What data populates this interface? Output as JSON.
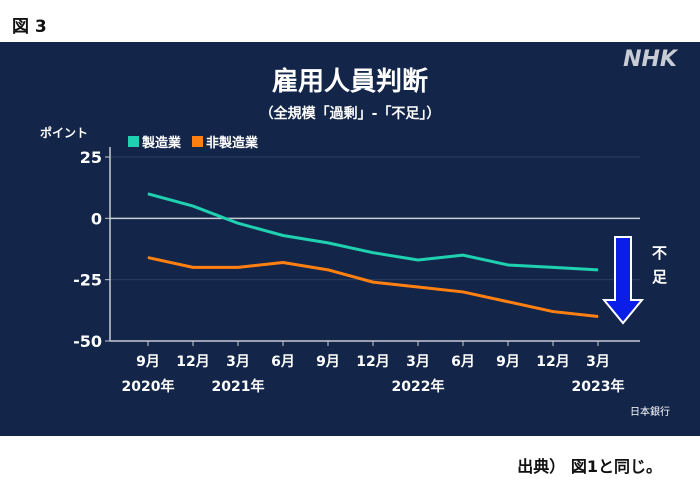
{
  "figure_label": "図 3",
  "logo": "NHK",
  "source_note": "日本銀行",
  "caption": "出典） 図1と同じ。",
  "annotation": "不足",
  "chart_data": {
    "type": "line",
    "title": "雇用人員判断",
    "subtitle": "（全規模「過剰」-「不足」）",
    "ylabel": "ポイント",
    "ylim": [
      -50,
      25
    ],
    "yticks": [
      25,
      0,
      -25,
      -50
    ],
    "categories": [
      "9月",
      "12月",
      "3月",
      "6月",
      "9月",
      "12月",
      "3月",
      "6月",
      "9月",
      "12月",
      "3月"
    ],
    "year_labels": [
      {
        "index": 0,
        "label": "2020年"
      },
      {
        "index": 2,
        "label": "2021年"
      },
      {
        "index": 6,
        "label": "2022年"
      },
      {
        "index": 10,
        "label": "2023年"
      }
    ],
    "series": [
      {
        "name": "製造業",
        "color": "#1fd1b0",
        "values": [
          10,
          5,
          -2,
          -7,
          -10,
          -14,
          -17,
          -15,
          -19,
          -20,
          -21
        ]
      },
      {
        "name": "非製造業",
        "color": "#ff8010",
        "values": [
          -16,
          -20,
          -20,
          -18,
          -21,
          -26,
          -28,
          -30,
          -34,
          -38,
          -40
        ]
      }
    ],
    "legend": "top-left",
    "grid": true
  }
}
